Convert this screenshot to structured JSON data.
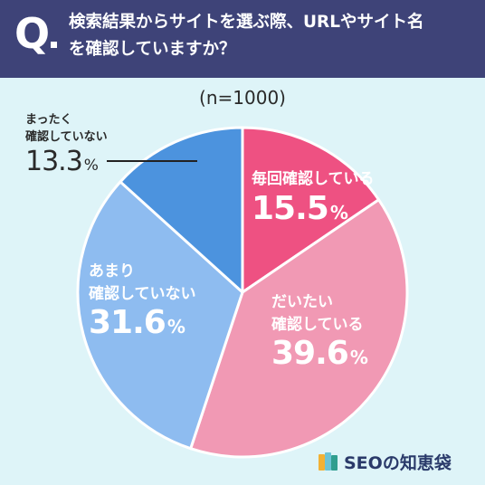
{
  "header": {
    "q": "Q",
    "question_line1": "検索結果からサイトを選ぶ際、URLやサイト名",
    "question_line2": "を確認していますか？"
  },
  "sample_size": "(n=1000)",
  "brand": {
    "name": "SEOの知恵袋"
  },
  "chart_data": {
    "type": "pie",
    "title": "",
    "unit": "%",
    "slices": [
      {
        "label_lines": [
          "毎回確認している"
        ],
        "value": 15.5,
        "value_text": "15.5",
        "color": "#ee5182",
        "text_color": "#ffffff"
      },
      {
        "label_lines": [
          "だいたい",
          "確認している"
        ],
        "value": 39.6,
        "value_text": "39.6",
        "color": "#f199b4",
        "text_color": "#ffffff"
      },
      {
        "label_lines": [
          "あまり",
          "確認していない"
        ],
        "value": 31.6,
        "value_text": "31.6",
        "color": "#8ebcf0",
        "text_color": "#ffffff"
      },
      {
        "label_lines": [
          "まったく",
          "確認していない"
        ],
        "value": 13.3,
        "value_text": "13.3",
        "color": "#4c93de",
        "text_color": "#2a2a2a"
      }
    ]
  }
}
